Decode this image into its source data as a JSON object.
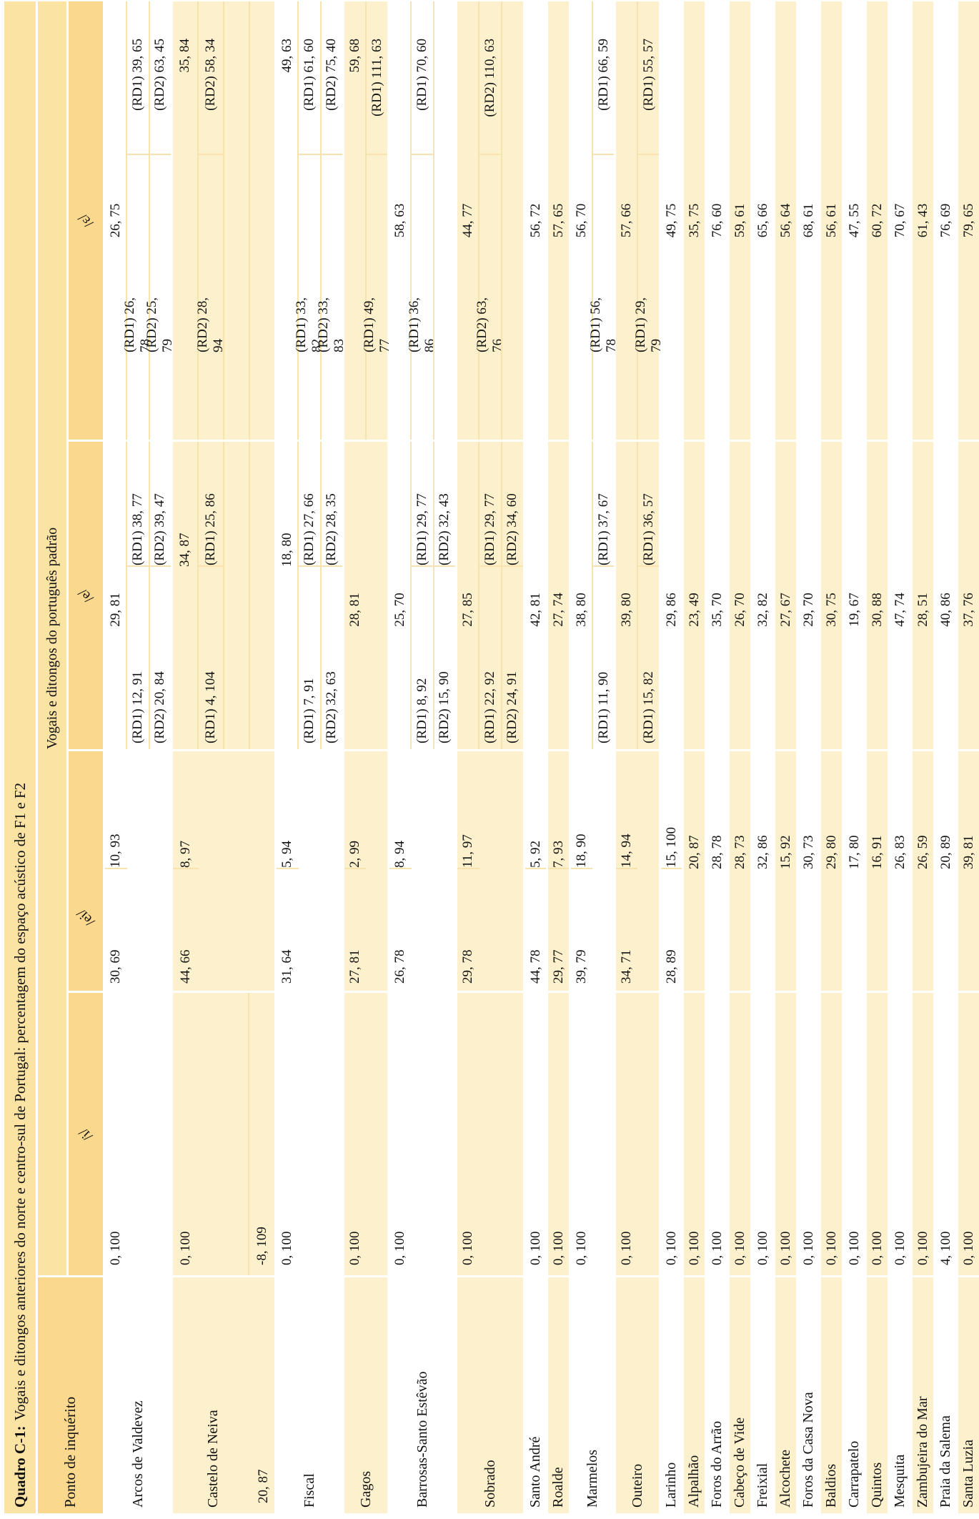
{
  "title": {
    "label": "Quadro C-1:",
    "rest": "Vogais e ditongos anteriores do norte e centro-sul de Portugal: percentagem do espaço acústico de F1 e F2"
  },
  "header": {
    "col1": "Ponto de inquérito",
    "group": "Vogais e ditongos do português padrão",
    "vowels": [
      "/i/",
      "/ei/",
      "/e/",
      "/ɛ/"
    ]
  },
  "colors": {
    "band_title": "#fbe3a4",
    "band_labels": "#fad88d",
    "row_yellow": "#fcf1cc",
    "row_white": "#ffffff",
    "separator": "#f6e3ae"
  },
  "rows": [
    {
      "name": "Arcos de Valdevez",
      "shade": "w",
      "lines": [
        {
          "i": "0, 100",
          "eiL": "30, 69",
          "eiR": "10, 93",
          "eC": "29, 81",
          "epsC": "26, 75"
        },
        {
          "eL": "(RD1) 12, 91",
          "eR": "(RD1) 38, 77",
          "epsL": "(RD1) 26, 78",
          "epsR": "(RD1) 39, 65"
        },
        {
          "eL": "(RD2) 20, 84",
          "eR": "(RD2) 39, 47",
          "epsL": "(RD2) 25, 79",
          "epsR": "(RD2) 63, 45"
        }
      ]
    },
    {
      "name": "Castelo de Neiva",
      "shade": "y",
      "nameExtra": "20, 87",
      "lines": [
        {
          "i": "0, 100",
          "eiL": "44, 66",
          "eiR": "8, 97",
          "eR": "34, 87",
          "epsR": "35, 84"
        },
        {
          "eL": "(RD1) 4, 104",
          "eR": "(RD1) 25, 86",
          "epsL": "(RD2) 28, 94",
          "epsR": "(RD2) 58, 34"
        },
        {},
        {
          "i": "-8, 109"
        }
      ]
    },
    {
      "name": "Fiscal",
      "shade": "w",
      "lines": [
        {
          "i": "0, 100",
          "eiL": "31, 64",
          "eiR": "5, 94",
          "eR": "18, 80",
          "epsR": "49, 63"
        },
        {
          "eL": "(RD1) 7, 91",
          "eR": "(RD1) 27, 66",
          "epsL": "(RD1) 33, 82",
          "epsR": "(RD1) 61, 60"
        },
        {
          "eL": "(RD2) 32, 63",
          "eR": "(RD2) 28, 35",
          "epsL": "(RD2) 33, 83",
          "epsR": "(RD2) 75, 40"
        }
      ]
    },
    {
      "name": "Gagos",
      "shade": "y",
      "lines": [
        {
          "i": "0, 100",
          "eiL": "27, 81",
          "eiR": "2, 99",
          "eC": "28, 81",
          "epsR": "59, 68"
        },
        {
          "epsL": "(RD1) 49, 77",
          "epsR": "(RD1) 111, 63"
        }
      ]
    },
    {
      "name": "Barrosas-Santo Estêvão",
      "shade": "w",
      "lines": [
        {
          "i": "0, 100",
          "eiL": "26, 78",
          "eiR": "8, 94",
          "eC": "25, 70",
          "epsC": "58, 63"
        },
        {
          "eL": "(RD1) 8, 92",
          "eR": "(RD1) 29, 77",
          "epsL": "(RD1) 36, 86",
          "epsR": "(RD1) 70, 60"
        },
        {
          "eL": "(RD2) 15, 90",
          "eR": "(RD2) 32, 43"
        }
      ]
    },
    {
      "name": "Sobrado",
      "shade": "y",
      "lines": [
        {
          "i": "0, 100",
          "eiL": "29, 78",
          "eiR": "11, 97",
          "eC": "27, 85",
          "epsC": "44, 77"
        },
        {
          "eL": "(RD1) 22, 92",
          "eR": "(RD1) 29, 77",
          "epsL": "(RD2) 63, 76",
          "epsR": "(RD2) 110, 63"
        },
        {
          "eL": "(RD2) 24, 91",
          "eR": "(RD2) 34, 60"
        }
      ]
    },
    {
      "name": "Santo André",
      "shade": "w",
      "lines": [
        {
          "i": "0, 100",
          "eiL": "44, 78",
          "eiR": "5, 92",
          "eC": "42, 81",
          "epsC": "56, 72"
        }
      ]
    },
    {
      "name": "Roalde",
      "shade": "y",
      "lines": [
        {
          "i": "0, 100",
          "eiL": "29, 77",
          "eiR": "7, 93",
          "eC": "27, 74",
          "epsC": "57, 65"
        }
      ]
    },
    {
      "name": "Marmelos",
      "shade": "w",
      "lines": [
        {
          "i": "0, 100",
          "eiL": "39, 79",
          "eiR": "18, 90",
          "eC": "38, 80",
          "epsC": "56, 70"
        },
        {
          "eL": "(RD1) 11, 90",
          "eR": "(RD1) 37, 67",
          "epsL": "(RD1) 56, 78",
          "epsR": "(RD1) 66, 59"
        }
      ]
    },
    {
      "name": "Outeiro",
      "shade": "y",
      "lines": [
        {
          "i": "0, 100",
          "eiL": "34, 71",
          "eiR": "14, 94",
          "eC": "39, 80",
          "epsC": "57, 66"
        },
        {
          "eL": "(RD1) 15, 82",
          "eR": "(RD1) 36, 57",
          "epsL": "(RD1) 29, 79",
          "epsR": "(RD1) 55, 57"
        }
      ]
    },
    {
      "name": "Larinho",
      "shade": "w",
      "lines": [
        {
          "i": "0, 100",
          "eiL": "28, 89",
          "eiR": "15, 100",
          "eC": "29, 86",
          "epsC": "49, 75"
        }
      ]
    },
    {
      "name": "Alpalhão",
      "shade": "y",
      "lines": [
        {
          "i": "0, 100",
          "eiR": "20, 87",
          "eC": "23, 49",
          "epsC": "35, 75"
        }
      ]
    },
    {
      "name": "Foros do Arrão",
      "shade": "w",
      "lines": [
        {
          "i": "0, 100",
          "eiR": "28, 78",
          "eC": "35, 70",
          "epsC": "76, 60"
        }
      ]
    },
    {
      "name": "Cabeço de Vide",
      "shade": "y",
      "lines": [
        {
          "i": "0, 100",
          "eiR": "28, 73",
          "eC": "26, 70",
          "epsC": "59, 61"
        }
      ]
    },
    {
      "name": "Freixial",
      "shade": "w",
      "lines": [
        {
          "i": "0, 100",
          "eiR": "32, 86",
          "eC": "32, 82",
          "epsC": "65, 66"
        }
      ]
    },
    {
      "name": "Alcochete",
      "shade": "y",
      "lines": [
        {
          "i": "0, 100",
          "eiR": "15, 92",
          "eC": "27, 67",
          "epsC": "56, 64"
        }
      ]
    },
    {
      "name": "Foros da Casa Nova",
      "shade": "w",
      "lines": [
        {
          "i": "0, 100",
          "eiR": "30, 73",
          "eC": "29, 70",
          "epsC": "68, 61"
        }
      ]
    },
    {
      "name": "Baldios",
      "shade": "y",
      "lines": [
        {
          "i": "0, 100",
          "eiR": "29, 80",
          "eC": "30, 75",
          "epsC": "56, 61"
        }
      ]
    },
    {
      "name": "Carrapatelo",
      "shade": "w",
      "lines": [
        {
          "i": "0, 100",
          "eiR": "17, 80",
          "eC": "19, 67",
          "epsC": "47, 55"
        }
      ]
    },
    {
      "name": "Quintos",
      "shade": "y",
      "lines": [
        {
          "i": "0, 100",
          "eiR": "16, 91",
          "eC": "30, 88",
          "epsC": "60, 72"
        }
      ]
    },
    {
      "name": "Mesquita",
      "shade": "w",
      "lines": [
        {
          "i": "0, 100",
          "eiR": "26, 83",
          "eC": "47, 74",
          "epsC": "70, 67"
        }
      ]
    },
    {
      "name": "Zambujeira do Mar",
      "shade": "y",
      "lines": [
        {
          "i": "0, 100",
          "eiR": "26, 59",
          "eC": "28, 51",
          "epsC": "61, 43"
        }
      ]
    },
    {
      "name": "Praia da Salema",
      "shade": "w",
      "lines": [
        {
          "i": "4, 100",
          "eiR": "20, 89",
          "eC": "40, 86",
          "epsC": "76, 69"
        }
      ]
    },
    {
      "name": "Santa Luzia",
      "shade": "y",
      "lines": [
        {
          "i": "0, 100",
          "eiR": "39, 81",
          "eC": "37, 76",
          "epsC": "79, 65"
        }
      ]
    }
  ]
}
